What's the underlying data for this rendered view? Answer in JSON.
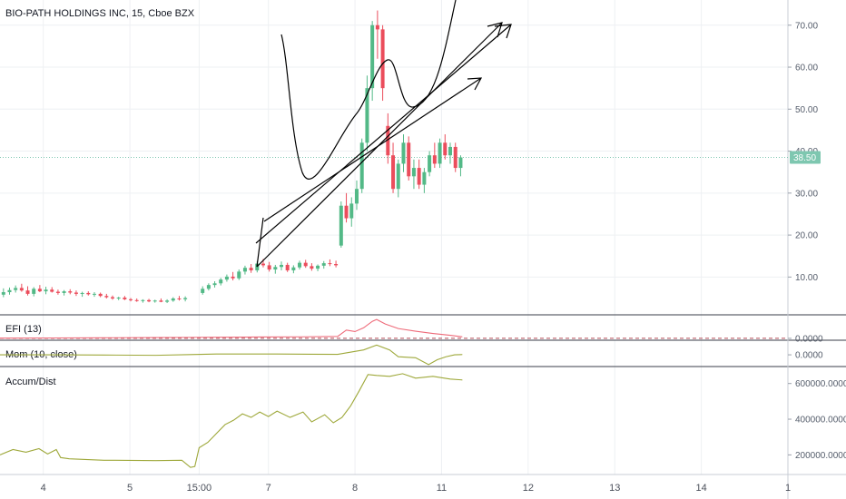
{
  "header": {
    "symbol_title": "BIO-PATH HOLDINGS INC, 15, Cboe BZX"
  },
  "panes": {
    "efi_title": "EFI (13)",
    "mom_title": "Mom (10, close)",
    "ad_title": "Accum/Dist"
  },
  "last_price_label": "38.50",
  "colors": {
    "up": "#53b987",
    "down": "#eb4d5c",
    "efi_line": "#ee6a79",
    "mom_line": "#9ea83a",
    "ad_line": "#9ea83a",
    "last_price": "#7ec7b0",
    "grid": "#eef0f3",
    "drawing": "#000000"
  },
  "chart_data": [
    {
      "type": "candlestick",
      "title": "BIO-PATH HOLDINGS INC, 15, Cboe BZX",
      "ylim": [
        1,
        76
      ],
      "y_ticks": [
        "10.00",
        "20.00",
        "30.00",
        "40.00",
        "50.00",
        "60.00",
        "70.00"
      ],
      "last_price": 38.5,
      "x_ticks": [
        "4",
        "5",
        "15:00",
        "7",
        "8",
        "11",
        "12",
        "13",
        "14",
        "1"
      ],
      "x_tick_positions": [
        0.5,
        1.5,
        2.3,
        3.1,
        4.1,
        5.1,
        6.1,
        7.1,
        8.1,
        9.1
      ],
      "xlim": [
        0,
        9.1
      ],
      "candles": [
        {
          "x": 0.04,
          "o": 5.8,
          "h": 7.3,
          "l": 5.2,
          "c": 6.4
        },
        {
          "x": 0.11,
          "o": 6.4,
          "h": 7.5,
          "l": 5.8,
          "c": 6.9
        },
        {
          "x": 0.18,
          "o": 6.9,
          "h": 8.0,
          "l": 6.3,
          "c": 7.4
        },
        {
          "x": 0.25,
          "o": 7.4,
          "h": 8.4,
          "l": 6.5,
          "c": 6.8
        },
        {
          "x": 0.32,
          "o": 6.8,
          "h": 7.8,
          "l": 5.6,
          "c": 6.0
        },
        {
          "x": 0.39,
          "o": 6.0,
          "h": 7.6,
          "l": 5.4,
          "c": 7.2
        },
        {
          "x": 0.46,
          "o": 7.2,
          "h": 8.1,
          "l": 6.4,
          "c": 6.6
        },
        {
          "x": 0.53,
          "o": 6.6,
          "h": 7.7,
          "l": 5.9,
          "c": 7.0
        },
        {
          "x": 0.6,
          "o": 7.0,
          "h": 7.6,
          "l": 6.3,
          "c": 6.5
        },
        {
          "x": 0.67,
          "o": 6.5,
          "h": 7.0,
          "l": 5.8,
          "c": 6.2
        },
        {
          "x": 0.74,
          "o": 6.2,
          "h": 6.9,
          "l": 5.6,
          "c": 6.6
        },
        {
          "x": 0.81,
          "o": 6.6,
          "h": 7.1,
          "l": 5.9,
          "c": 6.3
        },
        {
          "x": 0.88,
          "o": 6.3,
          "h": 6.8,
          "l": 5.5,
          "c": 6.0
        },
        {
          "x": 0.95,
          "o": 6.0,
          "h": 6.5,
          "l": 5.3,
          "c": 6.2
        },
        {
          "x": 1.02,
          "o": 6.2,
          "h": 6.6,
          "l": 5.6,
          "c": 5.9
        },
        {
          "x": 1.09,
          "o": 5.9,
          "h": 6.4,
          "l": 5.3,
          "c": 6.0
        },
        {
          "x": 1.16,
          "o": 6.0,
          "h": 6.3,
          "l": 5.2,
          "c": 5.5
        },
        {
          "x": 1.23,
          "o": 5.5,
          "h": 6.0,
          "l": 4.9,
          "c": 5.2
        },
        {
          "x": 1.3,
          "o": 5.2,
          "h": 5.6,
          "l": 4.6,
          "c": 4.9
        },
        {
          "x": 1.37,
          "o": 4.9,
          "h": 5.3,
          "l": 4.5,
          "c": 5.1
        },
        {
          "x": 1.44,
          "o": 5.1,
          "h": 5.5,
          "l": 4.5,
          "c": 4.7
        },
        {
          "x": 1.51,
          "o": 4.7,
          "h": 5.0,
          "l": 4.2,
          "c": 4.5
        },
        {
          "x": 1.58,
          "o": 4.5,
          "h": 4.9,
          "l": 4.1,
          "c": 4.3
        },
        {
          "x": 1.65,
          "o": 4.3,
          "h": 4.7,
          "l": 3.9,
          "c": 4.5
        },
        {
          "x": 1.72,
          "o": 4.5,
          "h": 4.8,
          "l": 4.0,
          "c": 4.2
        },
        {
          "x": 1.79,
          "o": 4.2,
          "h": 4.6,
          "l": 3.9,
          "c": 4.4
        },
        {
          "x": 1.86,
          "o": 4.4,
          "h": 4.9,
          "l": 4.0,
          "c": 4.1
        },
        {
          "x": 1.93,
          "o": 4.1,
          "h": 4.7,
          "l": 3.8,
          "c": 4.4
        },
        {
          "x": 2.0,
          "o": 4.4,
          "h": 5.2,
          "l": 4.1,
          "c": 4.9
        },
        {
          "x": 2.07,
          "o": 4.9,
          "h": 5.5,
          "l": 4.4,
          "c": 4.7
        },
        {
          "x": 2.14,
          "o": 4.7,
          "h": 5.4,
          "l": 4.2,
          "c": 5.0
        },
        {
          "x": 2.34,
          "o": 6.2,
          "h": 7.8,
          "l": 5.8,
          "c": 7.2
        },
        {
          "x": 2.41,
          "o": 7.2,
          "h": 8.5,
          "l": 6.8,
          "c": 8.1
        },
        {
          "x": 2.48,
          "o": 8.1,
          "h": 9.0,
          "l": 7.5,
          "c": 8.5
        },
        {
          "x": 2.55,
          "o": 8.5,
          "h": 9.8,
          "l": 8.0,
          "c": 9.4
        },
        {
          "x": 2.62,
          "o": 9.4,
          "h": 10.6,
          "l": 8.9,
          "c": 10.1
        },
        {
          "x": 2.69,
          "o": 10.1,
          "h": 11.2,
          "l": 9.2,
          "c": 9.7
        },
        {
          "x": 2.76,
          "o": 9.7,
          "h": 11.8,
          "l": 9.3,
          "c": 11.3
        },
        {
          "x": 2.83,
          "o": 11.3,
          "h": 12.7,
          "l": 10.6,
          "c": 12.2
        },
        {
          "x": 2.9,
          "o": 12.2,
          "h": 13.1,
          "l": 11.0,
          "c": 11.6
        },
        {
          "x": 2.97,
          "o": 11.6,
          "h": 13.8,
          "l": 11.1,
          "c": 13.2
        },
        {
          "x": 3.04,
          "o": 13.2,
          "h": 14.3,
          "l": 12.3,
          "c": 12.8
        },
        {
          "x": 3.11,
          "o": 12.8,
          "h": 13.6,
          "l": 11.3,
          "c": 11.8
        },
        {
          "x": 3.18,
          "o": 11.8,
          "h": 12.9,
          "l": 10.8,
          "c": 12.4
        },
        {
          "x": 3.25,
          "o": 12.4,
          "h": 13.7,
          "l": 11.6,
          "c": 12.9
        },
        {
          "x": 3.32,
          "o": 12.9,
          "h": 13.4,
          "l": 11.2,
          "c": 11.6
        },
        {
          "x": 3.39,
          "o": 11.6,
          "h": 12.8,
          "l": 10.9,
          "c": 12.3
        },
        {
          "x": 3.46,
          "o": 12.3,
          "h": 13.9,
          "l": 11.8,
          "c": 13.4
        },
        {
          "x": 3.53,
          "o": 13.4,
          "h": 14.1,
          "l": 12.2,
          "c": 12.6
        },
        {
          "x": 3.6,
          "o": 12.6,
          "h": 13.3,
          "l": 11.5,
          "c": 12.0
        },
        {
          "x": 3.67,
          "o": 12.0,
          "h": 13.0,
          "l": 11.4,
          "c": 12.7
        },
        {
          "x": 3.74,
          "o": 12.7,
          "h": 13.8,
          "l": 12.0,
          "c": 13.3
        },
        {
          "x": 3.81,
          "o": 13.3,
          "h": 14.2,
          "l": 12.6,
          "c": 13.1
        },
        {
          "x": 3.88,
          "o": 13.1,
          "h": 13.9,
          "l": 12.3,
          "c": 12.8
        },
        {
          "x": 3.94,
          "o": 17.5,
          "h": 28.0,
          "l": 17.0,
          "c": 27.0
        },
        {
          "x": 4.0,
          "o": 27.0,
          "h": 30.0,
          "l": 23.0,
          "c": 24.0
        },
        {
          "x": 4.06,
          "o": 24.0,
          "h": 29.0,
          "l": 22.0,
          "c": 27.5
        },
        {
          "x": 4.12,
          "o": 27.5,
          "h": 33.0,
          "l": 26.0,
          "c": 31.0
        },
        {
          "x": 4.18,
          "o": 31.0,
          "h": 43.0,
          "l": 30.0,
          "c": 42.0
        },
        {
          "x": 4.24,
          "o": 42.0,
          "h": 58.0,
          "l": 40.0,
          "c": 55.0
        },
        {
          "x": 4.3,
          "o": 55.0,
          "h": 71.0,
          "l": 52.0,
          "c": 70.0
        },
        {
          "x": 4.36,
          "o": 70.0,
          "h": 73.5,
          "l": 62.0,
          "c": 69.0
        },
        {
          "x": 4.42,
          "o": 69.0,
          "h": 70.0,
          "l": 52.0,
          "c": 55.0
        },
        {
          "x": 4.48,
          "o": 46.0,
          "h": 49.0,
          "l": 37.0,
          "c": 39.0
        },
        {
          "x": 4.54,
          "o": 39.0,
          "h": 42.0,
          "l": 30.0,
          "c": 31.0
        },
        {
          "x": 4.6,
          "o": 31.0,
          "h": 38.0,
          "l": 29.0,
          "c": 37.0
        },
        {
          "x": 4.66,
          "o": 37.0,
          "h": 44.0,
          "l": 35.0,
          "c": 42.0
        },
        {
          "x": 4.72,
          "o": 42.0,
          "h": 43.5,
          "l": 33.0,
          "c": 34.0
        },
        {
          "x": 4.78,
          "o": 34.0,
          "h": 38.0,
          "l": 31.0,
          "c": 36.0
        },
        {
          "x": 4.84,
          "o": 36.0,
          "h": 38.0,
          "l": 31.0,
          "c": 32.0
        },
        {
          "x": 4.9,
          "o": 32.0,
          "h": 36.0,
          "l": 30.0,
          "c": 35.0
        },
        {
          "x": 4.96,
          "o": 35.0,
          "h": 40.0,
          "l": 34.0,
          "c": 39.0
        },
        {
          "x": 5.02,
          "o": 39.0,
          "h": 42.0,
          "l": 36.0,
          "c": 37.0
        },
        {
          "x": 5.08,
          "o": 37.0,
          "h": 43.0,
          "l": 36.0,
          "c": 42.0
        },
        {
          "x": 5.14,
          "o": 42.0,
          "h": 44.0,
          "l": 38.0,
          "c": 39.0
        },
        {
          "x": 5.2,
          "o": 39.0,
          "h": 42.0,
          "l": 37.0,
          "c": 41.0
        },
        {
          "x": 5.26,
          "o": 41.0,
          "h": 42.0,
          "l": 35.0,
          "c": 36.0
        },
        {
          "x": 5.32,
          "o": 36.0,
          "h": 39.0,
          "l": 34.0,
          "c": 38.5
        }
      ]
    },
    {
      "type": "line",
      "title": "EFI (13)",
      "ylim": [
        -0.5,
        6
      ],
      "y_ticks": [
        "0.0000"
      ],
      "x": [
        0.0,
        0.6,
        1.2,
        1.8,
        2.2,
        2.6,
        3.0,
        3.5,
        3.9,
        4.0,
        4.1,
        4.2,
        4.3,
        4.35,
        4.45,
        4.6,
        4.8,
        5.0,
        5.2,
        5.34
      ],
      "values": [
        0.05,
        0.1,
        0.15,
        0.2,
        0.25,
        0.3,
        0.35,
        0.4,
        0.5,
        2.2,
        1.8,
        2.8,
        4.5,
        5.0,
        3.8,
        2.6,
        1.9,
        1.3,
        0.8,
        0.4
      ]
    },
    {
      "type": "line",
      "title": "Mom (10, close)",
      "ylim": [
        -12,
        14
      ],
      "y_ticks": [
        "0.0000"
      ],
      "x": [
        0.0,
        0.6,
        1.2,
        1.8,
        2.2,
        2.5,
        2.8,
        3.2,
        3.6,
        3.9,
        4.0,
        4.2,
        4.35,
        4.5,
        4.6,
        4.8,
        4.95,
        5.05,
        5.15,
        5.25,
        5.34
      ],
      "values": [
        0.0,
        0.0,
        -0.2,
        -0.5,
        0.2,
        0.8,
        0.8,
        0.8,
        0.6,
        0.5,
        2.0,
        5.0,
        10.0,
        5.0,
        -2.0,
        -3.0,
        -10.0,
        -5.0,
        -2.0,
        0.0,
        0.3
      ]
    },
    {
      "type": "line",
      "title": "Accum/Dist",
      "ylim": [
        90000,
        690000
      ],
      "y_ticks": [
        "200000.0000",
        "400000.0000",
        "600000.0000"
      ],
      "x": [
        0.0,
        0.15,
        0.3,
        0.45,
        0.55,
        0.65,
        0.7,
        0.8,
        1.2,
        1.8,
        2.1,
        2.2,
        2.25,
        2.3,
        2.4,
        2.5,
        2.6,
        2.7,
        2.8,
        2.9,
        3.0,
        3.1,
        3.2,
        3.35,
        3.5,
        3.6,
        3.75,
        3.85,
        3.95,
        4.05,
        4.15,
        4.25,
        4.35,
        4.5,
        4.65,
        4.8,
        5.0,
        5.2,
        5.34
      ],
      "values": [
        200000,
        230000,
        215000,
        235000,
        205000,
        230000,
        185000,
        178000,
        170000,
        168000,
        170000,
        130000,
        135000,
        240000,
        270000,
        320000,
        370000,
        395000,
        430000,
        410000,
        440000,
        415000,
        445000,
        410000,
        440000,
        385000,
        425000,
        380000,
        410000,
        475000,
        560000,
        650000,
        645000,
        640000,
        655000,
        630000,
        640000,
        625000,
        620000
      ]
    }
  ]
}
